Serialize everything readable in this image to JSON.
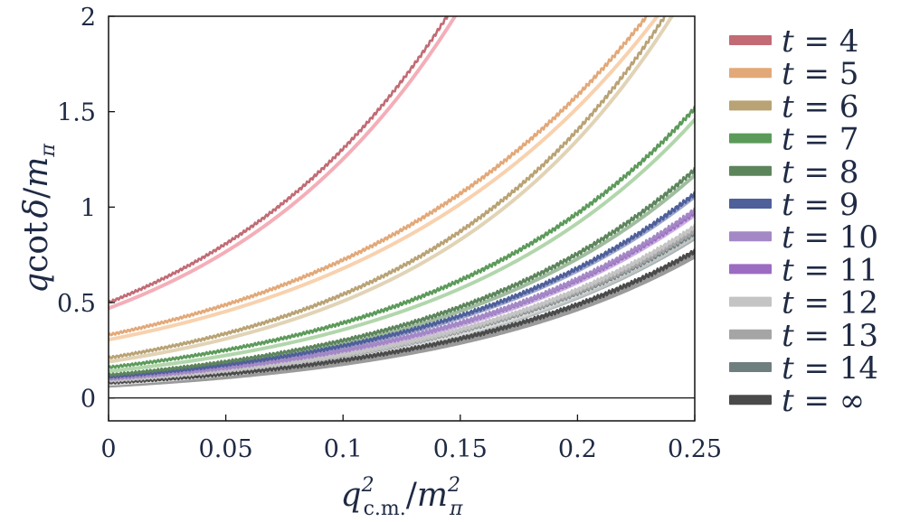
{
  "chart_data": {
    "type": "line",
    "title": "",
    "xlabel": "q²c.m./m²π",
    "ylabel": "q cot δ / mπ",
    "xlim": [
      0,
      0.25
    ],
    "ylim": [
      -0.12,
      2.0
    ],
    "x_ticks": [
      0,
      0.05,
      0.1,
      0.15,
      0.2,
      0.25
    ],
    "x_tick_labels": [
      "0",
      "0.05",
      "0.1",
      "0.15",
      "0.2",
      "0.25"
    ],
    "y_ticks": [
      0,
      0.5,
      1,
      1.5,
      2
    ],
    "y_tick_labels": [
      "0",
      "0.5",
      "1",
      "1.5",
      "2"
    ],
    "legend_position": "right",
    "series": [
      {
        "name": "t = 4",
        "color": "#c26b75",
        "y0": 0.5,
        "k": 9.6,
        "band_offset": -0.03,
        "band_color": "#f2a0ab"
      },
      {
        "name": "t = 5",
        "color": "#e3a878",
        "y0": 0.33,
        "k": 7.85,
        "band_offset": -0.025,
        "band_color": "#f7c9a0"
      },
      {
        "name": "t = 6",
        "color": "#b9a274",
        "y0": 0.21,
        "k": 9.5,
        "band_offset": -0.02,
        "band_color": "#dccba8"
      },
      {
        "name": "t = 7",
        "color": "#5c9a5a",
        "y0": 0.16,
        "k": 9.0,
        "band_offset": -0.02,
        "band_color": "#a4cf9e"
      },
      {
        "name": "t = 8",
        "color": "#5d855c",
        "y0": 0.12,
        "k": 9.2,
        "band_offset": -0.01,
        "band_color": "#8fb08e"
      },
      {
        "name": "t = 9",
        "color": "#4e5f9a",
        "y0": 0.11,
        "k": 9.1,
        "band_offset": -0.005,
        "band_color": "#8d98c4"
      },
      {
        "name": "t = 10",
        "color": "#a488c6",
        "y0": 0.1,
        "k": 9.15,
        "band_offset": -0.005,
        "band_color": "#c7b5dd"
      },
      {
        "name": "t = 11",
        "color": "#9c6cc2",
        "y0": 0.1,
        "k": 9.1,
        "band_offset": -0.005,
        "band_color": "#c3a2de"
      },
      {
        "name": "t = 12",
        "color": "#c4c4c4",
        "y0": 0.09,
        "k": 9.2,
        "band_offset": -0.005,
        "band_color": "#dedede"
      },
      {
        "name": "t = 13",
        "color": "#a5a5a5",
        "y0": 0.09,
        "k": 9.1,
        "band_offset": -0.005,
        "band_color": "#c8c8c8"
      },
      {
        "name": "t = 14",
        "color": "#6f7f80",
        "y0": 0.09,
        "k": 9.05,
        "band_offset": -0.005,
        "band_color": "#98a6a7"
      },
      {
        "name": "t = ∞",
        "color": "#4a4a4a",
        "y0": 0.08,
        "k": 9.05,
        "band_offset": -0.005,
        "band_color": "#8a8a8a"
      }
    ],
    "legend": [
      {
        "prefix": "t",
        "eq": " = ",
        "value": "4"
      },
      {
        "prefix": "t",
        "eq": " = ",
        "value": "5"
      },
      {
        "prefix": "t",
        "eq": " = ",
        "value": "6"
      },
      {
        "prefix": "t",
        "eq": " = ",
        "value": "7"
      },
      {
        "prefix": "t",
        "eq": " = ",
        "value": "8"
      },
      {
        "prefix": "t",
        "eq": " = ",
        "value": "9"
      },
      {
        "prefix": "t",
        "eq": " = ",
        "value": "10"
      },
      {
        "prefix": "t",
        "eq": " = ",
        "value": "11"
      },
      {
        "prefix": "t",
        "eq": " = ",
        "value": "12"
      },
      {
        "prefix": "t",
        "eq": " = ",
        "value": "13"
      },
      {
        "prefix": "t",
        "eq": " = ",
        "value": "14"
      },
      {
        "prefix": "t",
        "eq": " = ",
        "value": "∞"
      }
    ],
    "zero_line": true
  }
}
